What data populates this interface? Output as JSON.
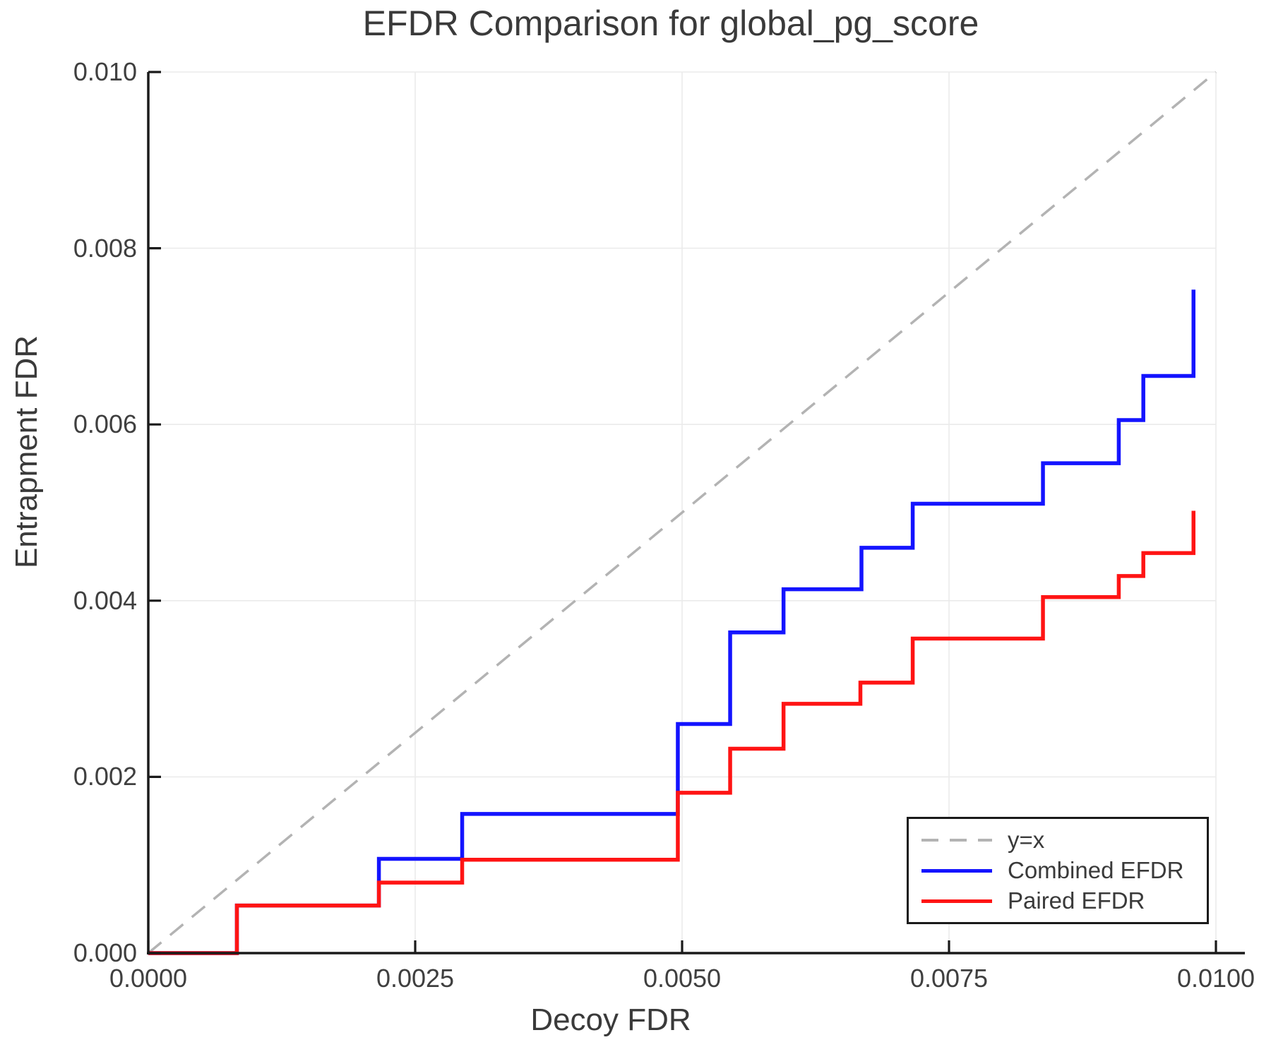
{
  "title": "EFDR Comparison for global_pg_score",
  "axes": {
    "x_label": "Decoy FDR",
    "y_label": "Entrapment FDR",
    "x_tick_labels": [
      "0.0000",
      "0.0025",
      "0.0050",
      "0.0075",
      "0.0100"
    ],
    "y_tick_labels": [
      "0.000",
      "0.002",
      "0.004",
      "0.006",
      "0.008",
      "0.010"
    ]
  },
  "legend": {
    "items": [
      {
        "label": "y=x",
        "color": "#b3b3b3",
        "style": "dashed"
      },
      {
        "label": "Combined EFDR",
        "color": "#1414ff",
        "style": "solid"
      },
      {
        "label": "Paired EFDR",
        "color": "#ff1414",
        "style": "solid"
      }
    ]
  },
  "colors": {
    "background": "#ffffff",
    "grid": "#ebebeb",
    "axis": "#1a1a1a",
    "text": "#3a3a3a",
    "tick_text": "#3f3f3f",
    "reference": "#b3b3b3",
    "combined": "#1414ff",
    "paired": "#ff1414"
  },
  "chart_data": {
    "type": "line",
    "title": "EFDR Comparison for global_pg_score",
    "xlabel": "Decoy FDR",
    "ylabel": "Entrapment FDR",
    "xlim": [
      0.0,
      0.01
    ],
    "ylim": [
      0.0,
      0.01
    ],
    "x_ticks": [
      0.0,
      0.0025,
      0.005,
      0.0075,
      0.01
    ],
    "y_ticks": [
      0.0,
      0.002,
      0.004,
      0.006,
      0.008,
      0.01
    ],
    "grid": true,
    "legend_position": "lower right",
    "series": [
      {
        "name": "y=x",
        "style": "dashed",
        "draw": "line",
        "color": "#b3b3b3",
        "points": [
          [
            0.0,
            0.0
          ],
          [
            0.01,
            0.01
          ]
        ]
      },
      {
        "name": "Combined EFDR",
        "style": "solid",
        "draw": "step-post",
        "color": "#1414ff",
        "points": [
          [
            0.0,
            0.0
          ],
          [
            0.00083,
            0.00054
          ],
          [
            0.00216,
            0.00107
          ],
          [
            0.00294,
            0.00158
          ],
          [
            0.00496,
            0.0026
          ],
          [
            0.00545,
            0.00364
          ],
          [
            0.00595,
            0.00413
          ],
          [
            0.00668,
            0.0046
          ],
          [
            0.00716,
            0.0051
          ],
          [
            0.00838,
            0.00556
          ],
          [
            0.00909,
            0.00605
          ],
          [
            0.00932,
            0.00655
          ],
          [
            0.00979,
            0.00753
          ]
        ]
      },
      {
        "name": "Paired EFDR",
        "style": "solid",
        "draw": "step-post",
        "color": "#ff1414",
        "points": [
          [
            0.0,
            0.0
          ],
          [
            0.00083,
            0.00054
          ],
          [
            0.00216,
            0.0008
          ],
          [
            0.00294,
            0.00106
          ],
          [
            0.00496,
            0.00182
          ],
          [
            0.00545,
            0.00232
          ],
          [
            0.00595,
            0.00283
          ],
          [
            0.00667,
            0.00307
          ],
          [
            0.00716,
            0.00357
          ],
          [
            0.00838,
            0.00404
          ],
          [
            0.00909,
            0.00428
          ],
          [
            0.00932,
            0.00454
          ],
          [
            0.00979,
            0.00502
          ]
        ]
      }
    ]
  }
}
